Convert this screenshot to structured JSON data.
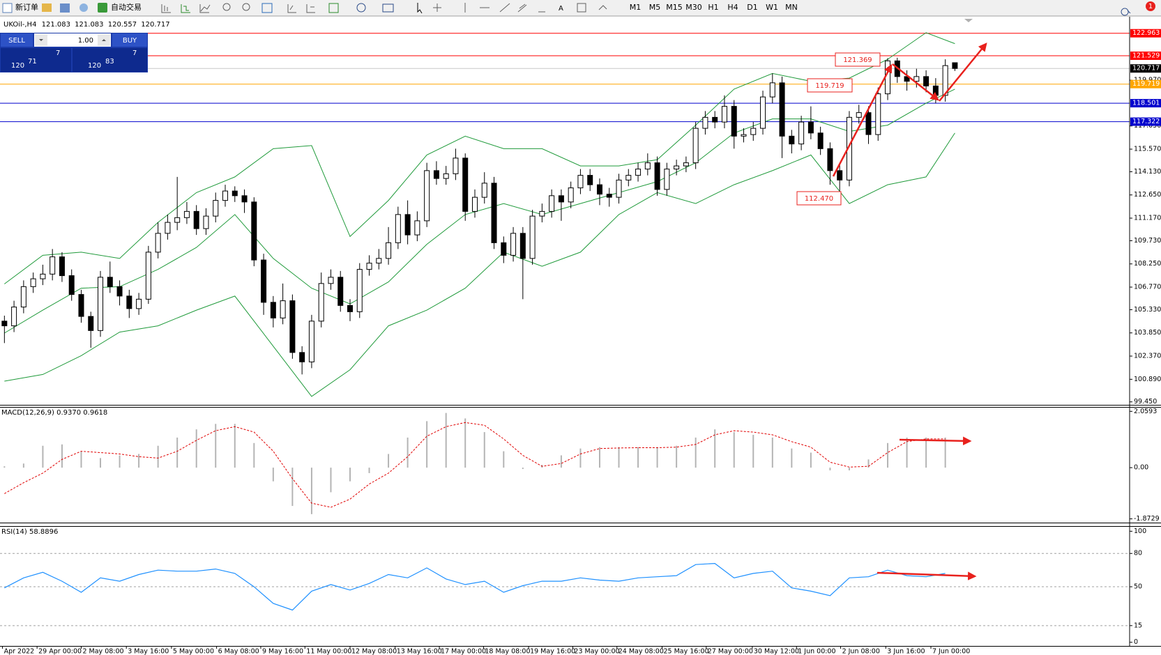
{
  "toolbar": {
    "new_order": "新订单",
    "auto_trading": "自动交易",
    "timeframes": [
      "M1",
      "M5",
      "M15",
      "M30",
      "H1",
      "H4",
      "D1",
      "W1",
      "MN"
    ],
    "notifications": 1
  },
  "trade_panel": {
    "sell": "SELL",
    "buy": "BUY",
    "lots": "1.00",
    "sell_price": {
      "big": "120",
      "main": "71",
      "small": "7"
    },
    "buy_price": {
      "big": "120",
      "main": "83",
      "small": "7"
    }
  },
  "chart_data": [
    {
      "type": "candlestick",
      "title": "UKOil-,H4",
      "up_color": "#ffffff",
      "down_color": "#000000",
      "xlim": [
        -0.46,
        117.2
      ],
      "ylim": [
        99.26,
        123.95
      ],
      "yticks": [
        {
          "value": 119.97,
          "label": "119.970"
        },
        {
          "value": 117.05,
          "label": "117.050"
        },
        {
          "value": 115.57,
          "label": "115.570"
        },
        {
          "value": 114.13,
          "label": "114.130"
        },
        {
          "value": 112.65,
          "label": "112.650"
        },
        {
          "value": 111.17,
          "label": "111.170"
        },
        {
          "value": 109.73,
          "label": "109.730"
        },
        {
          "value": 108.25,
          "label": "108.250"
        },
        {
          "value": 106.77,
          "label": "106.770"
        },
        {
          "value": 105.33,
          "label": "105.330"
        },
        {
          "value": 103.85,
          "label": "103.850"
        },
        {
          "value": 102.37,
          "label": "102.370"
        },
        {
          "value": 100.89,
          "label": "100.890"
        },
        {
          "value": 99.45,
          "label": "99.450"
        }
      ],
      "xticks": [
        {
          "value": -0.2,
          "label": "Apr 2022"
        },
        {
          "value": 3.4,
          "label": "29 Apr 00:00"
        },
        {
          "value": 8.0,
          "label": "2 May 08:00"
        },
        {
          "value": 12.7,
          "label": "3 May 16:00"
        },
        {
          "value": 17.4,
          "label": "5 May 00:00"
        },
        {
          "value": 22.1,
          "label": "6 May 08:00"
        },
        {
          "value": 26.7,
          "label": "9 May 16:00"
        },
        {
          "value": 31.3,
          "label": "11 May 00:00"
        },
        {
          "value": 36.0,
          "label": "12 May 08:00"
        },
        {
          "value": 40.7,
          "label": "13 May 16:00"
        },
        {
          "value": 45.3,
          "label": "17 May 00:00"
        },
        {
          "value": 49.9,
          "label": "18 May 08:00"
        },
        {
          "value": 54.6,
          "label": "19 May 16:00"
        },
        {
          "value": 59.2,
          "label": "23 May 00:00"
        },
        {
          "value": 63.8,
          "label": "24 May 08:00"
        },
        {
          "value": 68.5,
          "label": "25 May 16:00"
        },
        {
          "value": 73.1,
          "label": "27 May 00:00"
        },
        {
          "value": 77.9,
          "label": "30 May 12:00"
        },
        {
          "value": 82.5,
          "label": "1 Jun 00:00"
        },
        {
          "value": 87.1,
          "label": "2 Jun 08:00"
        },
        {
          "value": 91.8,
          "label": "3 Jun 16:00"
        },
        {
          "value": 96.5,
          "label": "7 Jun 00:00"
        }
      ],
      "levels": [
        {
          "value": 122.963,
          "color": "#ff0000"
        },
        {
          "value": 121.529,
          "color": "#ff0000"
        },
        {
          "value": 119.719,
          "color": "#ffa500"
        },
        {
          "value": 118.501,
          "color": "#0000cd"
        },
        {
          "value": 117.322,
          "color": "#0000cd"
        }
      ],
      "annotations": [
        {
          "text": "121.369"
        },
        {
          "text": "119.719"
        },
        {
          "text": "112.470"
        }
      ],
      "candles": [
        [
          104.6,
          104.95,
          103.2,
          104.3
        ],
        [
          104.3,
          105.9,
          103.9,
          105.5
        ],
        [
          105.5,
          107.2,
          105.1,
          106.8
        ],
        [
          106.8,
          107.7,
          106.4,
          107.3
        ],
        [
          107.3,
          108.2,
          106.9,
          107.6
        ],
        [
          107.6,
          109.2,
          107.2,
          108.7
        ],
        [
          108.7,
          109.0,
          107.1,
          107.5
        ],
        [
          107.5,
          107.9,
          105.9,
          106.3
        ],
        [
          106.3,
          106.6,
          104.5,
          104.9
        ],
        [
          104.9,
          105.2,
          102.9,
          104.0
        ],
        [
          104.0,
          107.8,
          103.6,
          107.4
        ],
        [
          107.4,
          108.4,
          106.4,
          106.8
        ],
        [
          106.8,
          107.2,
          105.6,
          106.2
        ],
        [
          106.2,
          106.6,
          104.8,
          105.4
        ],
        [
          105.4,
          106.4,
          105.0,
          106.0
        ],
        [
          106.0,
          109.4,
          105.7,
          109.0
        ],
        [
          109.0,
          110.9,
          108.6,
          110.2
        ],
        [
          110.2,
          111.4,
          109.8,
          110.9
        ],
        [
          110.9,
          113.8,
          110.4,
          111.2
        ],
        [
          111.2,
          112.2,
          110.8,
          111.6
        ],
        [
          111.6,
          112.0,
          110.1,
          110.5
        ],
        [
          110.5,
          111.8,
          110.1,
          111.3
        ],
        [
          111.3,
          112.8,
          110.9,
          112.3
        ],
        [
          112.3,
          113.3,
          111.9,
          112.9
        ],
        [
          112.9,
          113.2,
          112.2,
          112.6
        ],
        [
          112.6,
          113.0,
          111.5,
          112.2
        ],
        [
          112.2,
          112.5,
          108.1,
          108.5
        ],
        [
          108.5,
          108.9,
          105.0,
          105.8
        ],
        [
          105.8,
          106.2,
          104.2,
          104.8
        ],
        [
          104.8,
          107.0,
          104.4,
          105.9
        ],
        [
          105.9,
          106.3,
          102.2,
          102.6
        ],
        [
          102.6,
          103.0,
          101.2,
          102.0
        ],
        [
          102.0,
          105.0,
          101.6,
          104.6
        ],
        [
          104.6,
          107.7,
          104.2,
          107.0
        ],
        [
          107.0,
          107.9,
          106.6,
          107.4
        ],
        [
          107.4,
          107.8,
          105.2,
          105.6
        ],
        [
          105.6,
          106.0,
          104.6,
          105.2
        ],
        [
          105.2,
          108.3,
          104.8,
          107.9
        ],
        [
          107.9,
          108.8,
          107.5,
          108.3
        ],
        [
          108.3,
          109.2,
          107.9,
          108.6
        ],
        [
          108.6,
          110.6,
          108.2,
          109.6
        ],
        [
          109.6,
          111.9,
          109.2,
          111.4
        ],
        [
          111.4,
          112.3,
          109.5,
          110.1
        ],
        [
          110.1,
          111.6,
          109.7,
          111.0
        ],
        [
          111.0,
          114.7,
          110.6,
          114.2
        ],
        [
          114.2,
          114.8,
          113.3,
          113.7
        ],
        [
          113.7,
          114.5,
          113.3,
          114.0
        ],
        [
          114.0,
          115.6,
          113.6,
          115.0
        ],
        [
          115.0,
          115.3,
          111.0,
          111.6
        ],
        [
          111.6,
          113.0,
          111.2,
          112.5
        ],
        [
          112.5,
          114.1,
          112.1,
          113.4
        ],
        [
          113.4,
          113.8,
          109.2,
          109.6
        ],
        [
          109.6,
          110.0,
          108.3,
          108.8
        ],
        [
          108.8,
          110.6,
          108.4,
          110.2
        ],
        [
          110.2,
          110.6,
          106.0,
          108.6
        ],
        [
          108.6,
          111.7,
          108.2,
          111.3
        ],
        [
          111.3,
          112.1,
          110.9,
          111.6
        ],
        [
          111.6,
          113.0,
          111.2,
          112.6
        ],
        [
          112.6,
          113.0,
          111.0,
          112.2
        ],
        [
          112.2,
          113.5,
          111.8,
          113.1
        ],
        [
          113.1,
          114.3,
          112.7,
          113.9
        ],
        [
          113.9,
          114.3,
          112.9,
          113.3
        ],
        [
          113.3,
          113.7,
          112.0,
          112.7
        ],
        [
          112.7,
          113.1,
          111.9,
          112.5
        ],
        [
          112.5,
          114.0,
          112.1,
          113.6
        ],
        [
          113.6,
          114.3,
          113.2,
          113.9
        ],
        [
          113.9,
          114.7,
          113.5,
          114.3
        ],
        [
          114.3,
          115.3,
          113.9,
          114.7
        ],
        [
          114.7,
          115.1,
          112.6,
          113.0
        ],
        [
          113.0,
          114.7,
          112.6,
          114.3
        ],
        [
          114.3,
          114.9,
          113.9,
          114.5
        ],
        [
          114.5,
          115.1,
          114.1,
          114.7
        ],
        [
          114.7,
          117.3,
          114.3,
          116.9
        ],
        [
          116.9,
          118.0,
          116.5,
          117.6
        ],
        [
          117.6,
          118.0,
          116.9,
          117.3
        ],
        [
          117.3,
          119.0,
          116.9,
          118.3
        ],
        [
          118.3,
          118.7,
          115.6,
          116.4
        ],
        [
          116.4,
          116.9,
          116.0,
          116.5
        ],
        [
          116.5,
          117.3,
          116.1,
          116.9
        ],
        [
          116.9,
          119.3,
          116.5,
          118.9
        ],
        [
          118.9,
          120.4,
          118.5,
          119.8
        ],
        [
          119.8,
          120.2,
          115.0,
          116.4
        ],
        [
          116.4,
          116.8,
          115.3,
          115.9
        ],
        [
          115.9,
          117.7,
          115.5,
          117.3
        ],
        [
          117.3,
          118.3,
          116.2,
          116.6
        ],
        [
          116.6,
          117.0,
          115.2,
          115.6
        ],
        [
          115.6,
          116.0,
          113.3,
          114.2
        ],
        [
          114.2,
          114.6,
          112.47,
          113.6
        ],
        [
          113.6,
          118.0,
          113.2,
          117.6
        ],
        [
          117.6,
          118.4,
          117.2,
          117.9
        ],
        [
          117.9,
          118.3,
          115.9,
          116.5
        ],
        [
          116.5,
          119.5,
          116.1,
          119.1
        ],
        [
          119.1,
          121.369,
          118.7,
          121.2
        ],
        [
          121.2,
          121.4,
          119.8,
          120.2
        ],
        [
          120.2,
          120.6,
          119.3,
          119.9
        ],
        [
          119.9,
          120.7,
          119.5,
          120.2
        ],
        [
          120.2,
          120.6,
          119.2,
          119.6
        ],
        [
          119.6,
          120.1,
          118.5,
          119.0
        ],
        [
          119.0,
          121.3,
          118.6,
          120.9
        ],
        [
          121.083,
          121.083,
          120.557,
          120.717
        ]
      ],
      "bands": {
        "color": "#1f9a3a",
        "x": [
          0,
          4,
          8,
          12,
          16,
          20,
          24,
          28,
          32,
          36,
          40,
          44,
          48,
          52,
          56,
          60,
          64,
          68,
          72,
          76,
          80,
          84,
          88,
          92,
          96,
          99
        ],
        "upper": [
          106.97,
          108.8,
          109.0,
          108.6,
          110.9,
          112.8,
          113.8,
          115.6,
          115.8,
          110.0,
          112.3,
          115.2,
          116.4,
          115.6,
          115.6,
          114.5,
          114.5,
          114.9,
          117.1,
          119.4,
          120.4,
          119.9,
          120.1,
          121.3,
          123.0,
          122.3
        ],
        "middle": [
          103.84,
          105.3,
          106.7,
          106.8,
          107.9,
          109.3,
          111.4,
          108.6,
          106.7,
          105.7,
          107.1,
          109.5,
          111.4,
          112.1,
          111.4,
          112.1,
          112.8,
          113.5,
          114.7,
          116.6,
          117.5,
          117.5,
          116.7,
          117.1,
          118.5,
          119.4
        ],
        "lower": [
          100.77,
          101.2,
          102.4,
          103.9,
          104.3,
          105.3,
          106.2,
          103.0,
          99.8,
          101.5,
          104.3,
          105.3,
          106.7,
          109.0,
          108.1,
          109.0,
          111.4,
          112.8,
          112.1,
          113.3,
          114.2,
          115.2,
          112.1,
          113.3,
          113.8,
          116.6
        ]
      }
    },
    {
      "type": "macd",
      "title": "MACD(12,26,9) 0.9370 0.9618",
      "histogram_color": "#b4b4b4",
      "signal_color": "#e00000",
      "ylim": [
        -2.01,
        2.22
      ],
      "yticks": [
        2.0593,
        {
          "value": 0,
          "label": "0.00"
        },
        -1.8729
      ],
      "x": [
        0,
        2,
        4,
        6,
        8,
        10,
        12,
        14,
        16,
        18,
        20,
        22,
        24,
        26,
        28,
        30,
        32,
        34,
        36,
        38,
        40,
        42,
        44,
        46,
        48,
        50,
        52,
        54,
        56,
        58,
        60,
        62,
        64,
        66,
        68,
        70,
        72,
        74,
        76,
        78,
        80,
        82,
        84,
        86,
        88,
        90,
        92,
        94,
        96,
        98
      ],
      "histogram": [
        0.05,
        0.15,
        0.8,
        0.85,
        0.6,
        0.35,
        0.45,
        0.5,
        0.8,
        1.1,
        1.4,
        1.6,
        1.6,
        0.9,
        -0.5,
        -1.4,
        -1.7,
        -0.9,
        -0.5,
        -0.2,
        0.5,
        1.1,
        1.7,
        2.0,
        1.8,
        1.3,
        0.6,
        -0.05,
        0.1,
        0.45,
        0.7,
        0.75,
        0.75,
        0.75,
        0.75,
        0.8,
        1.1,
        1.4,
        1.3,
        1.2,
        1.1,
        0.7,
        0.55,
        -0.1,
        -0.1,
        0.3,
        0.9,
        1.1,
        1.1,
        1.1
      ],
      "signal": [
        -0.95,
        -0.55,
        -0.2,
        0.3,
        0.6,
        0.55,
        0.5,
        0.4,
        0.35,
        0.6,
        1.0,
        1.35,
        1.5,
        1.3,
        0.6,
        -0.4,
        -1.3,
        -1.45,
        -1.15,
        -0.6,
        -0.2,
        0.4,
        1.15,
        1.5,
        1.65,
        1.55,
        1.05,
        0.45,
        0.05,
        0.15,
        0.5,
        0.7,
        0.72,
        0.73,
        0.73,
        0.75,
        0.85,
        1.2,
        1.35,
        1.3,
        1.2,
        0.95,
        0.75,
        0.2,
        0.02,
        0.05,
        0.55,
        0.95,
        1.05,
        1.05
      ]
    },
    {
      "type": "line",
      "title": "RSI(14) 58.8896",
      "color": "#1e90ff",
      "ylim": [
        -3.3,
        104
      ],
      "yticks": [
        100,
        80,
        50,
        15,
        0
      ],
      "levels": [
        80,
        50,
        15
      ],
      "x": [
        0,
        2,
        4,
        6,
        8,
        10,
        12,
        14,
        16,
        18,
        20,
        22,
        24,
        26,
        28,
        30,
        32,
        34,
        36,
        38,
        40,
        42,
        44,
        46,
        48,
        50,
        52,
        54,
        56,
        58,
        60,
        62,
        64,
        66,
        68,
        70,
        72,
        74,
        76,
        78,
        80,
        82,
        84,
        86,
        88,
        90,
        92,
        94,
        96,
        98
      ],
      "values": [
        49,
        58,
        63,
        55,
        45,
        58,
        55,
        61,
        65,
        64,
        64,
        66,
        62,
        50,
        35,
        29,
        46,
        52,
        47,
        53,
        61,
        58,
        67,
        57,
        52,
        55,
        45,
        51,
        55,
        55,
        58,
        56,
        55,
        58,
        59,
        60,
        70,
        71,
        58,
        62,
        64,
        49,
        46,
        42,
        58,
        59,
        65,
        60,
        59,
        62
      ]
    }
  ]
}
